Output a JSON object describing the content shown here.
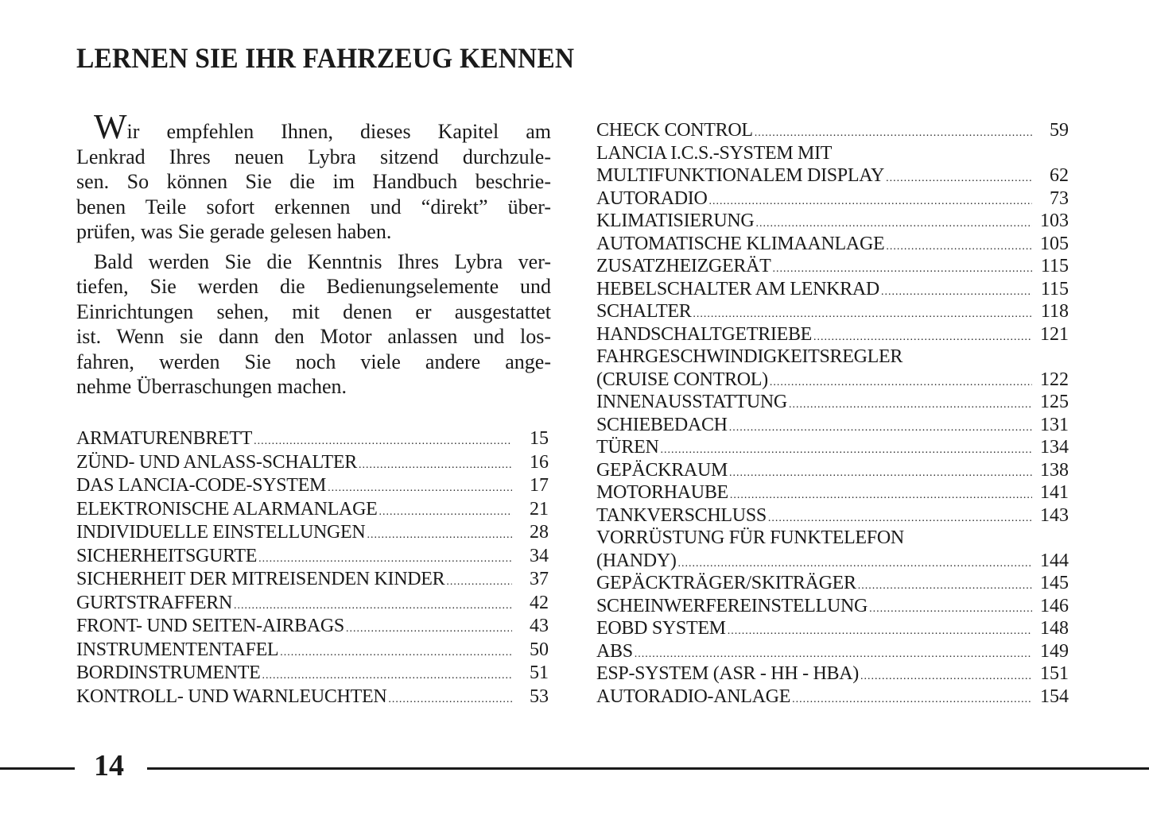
{
  "title": "LERNEN SIE IHR FAHRZEUG KENNEN",
  "intro": {
    "p1": {
      "dropcap": "W",
      "first_rest": "ir empfehlen Ihnen, dieses Kapitel am",
      "lines": [
        "Lenkrad Ihres neuen Lybra sitzend durchzule-",
        "sen. So können Sie die im Handbuch beschrie-",
        "benen Teile sofort erkennen und “direkt” über-",
        "prüfen, was Sie gerade gelesen haben."
      ]
    },
    "p2": {
      "lines": [
        "Bald werden Sie die Kenntnis Ihres Lybra ver-",
        "tiefen, Sie werden die Bedienungselemente und",
        "Einrichtungen sehen, mit denen er ausgestattet",
        "ist. Wenn sie dann den Motor anlassen und los-",
        "fahren, werden Sie noch viele andere ange-",
        "nehme Überraschungen machen."
      ]
    }
  },
  "toc_left": [
    {
      "title": "ARMATURENBRETT",
      "page": "15"
    },
    {
      "title": "ZÜND- UND ANLASS-SCHALTER",
      "page": "16"
    },
    {
      "title": "DAS LANCIA-CODE-SYSTEM",
      "page": "17"
    },
    {
      "title": "ELEKTRONISCHE ALARMANLAGE",
      "page": "21"
    },
    {
      "title": "INDIVIDUELLE EINSTELLUNGEN",
      "page": "28"
    },
    {
      "title": "SICHERHEITSGURTE",
      "page": "34"
    },
    {
      "title": "SICHERHEIT DER MITREISENDEN KINDER",
      "page": "37"
    },
    {
      "title": "GURTSTRAFFERN",
      "page": "42"
    },
    {
      "title": "FRONT- UND SEITEN-AIRBAGS",
      "page": "43"
    },
    {
      "title": "INSTRUMENTENTAFEL",
      "page": "50"
    },
    {
      "title": "BORDINSTRUMENTE",
      "page": "51"
    },
    {
      "title": "KONTROLL- UND WARNLEUCHTEN",
      "page": "53"
    }
  ],
  "toc_right": [
    {
      "title": "CHECK CONTROL",
      "page": "59"
    },
    {
      "pre": "LANCIA I.C.S.-SYSTEM MIT",
      "title": "MULTIFUNKTIONALEM DISPLAY",
      "page": "62"
    },
    {
      "title": "AUTORADIO",
      "page": "73"
    },
    {
      "title": "KLIMATISIERUNG",
      "page": "103"
    },
    {
      "title": "AUTOMATISCHE KLIMAANLAGE",
      "page": "105"
    },
    {
      "title": "ZUSATZHEIZGERÄT",
      "page": "115"
    },
    {
      "title": "HEBELSCHALTER AM LENKRAD",
      "page": "115"
    },
    {
      "title": "SCHALTER",
      "page": "118"
    },
    {
      "title": "HANDSCHALTGETRIEBE",
      "page": "121"
    },
    {
      "pre": "FAHRGESCHWINDIGKEITSREGLER",
      "title": "(CRUISE CONTROL)",
      "page": "122"
    },
    {
      "title": "INNENAUSSTATTUNG",
      "page": "125"
    },
    {
      "title": "SCHIEBEDACH",
      "page": "131"
    },
    {
      "title": "TÜREN",
      "page": "134"
    },
    {
      "title": "GEPÄCKRAUM",
      "page": "138"
    },
    {
      "title": "MOTORHAUBE",
      "page": "141"
    },
    {
      "title": "TANKVERSCHLUSS",
      "page": "143"
    },
    {
      "pre": "VORRÜSTUNG FÜR FUNKTELEFON",
      "title": "(HANDY)",
      "page": "144"
    },
    {
      "title": "GEPÄCKTRÄGER/SKITRÄGER",
      "page": "145"
    },
    {
      "title": "SCHEINWERFEREINSTELLUNG",
      "page": "146"
    },
    {
      "title": "EOBD SYSTEM",
      "page": "148"
    },
    {
      "title": "ABS",
      "page": "149"
    },
    {
      "title": "ESP-SYSTEM (ASR - HH - HBA)",
      "page": "151"
    },
    {
      "title": "AUTORADIO-ANLAGE",
      "page": "154"
    }
  ],
  "page_number": "14"
}
